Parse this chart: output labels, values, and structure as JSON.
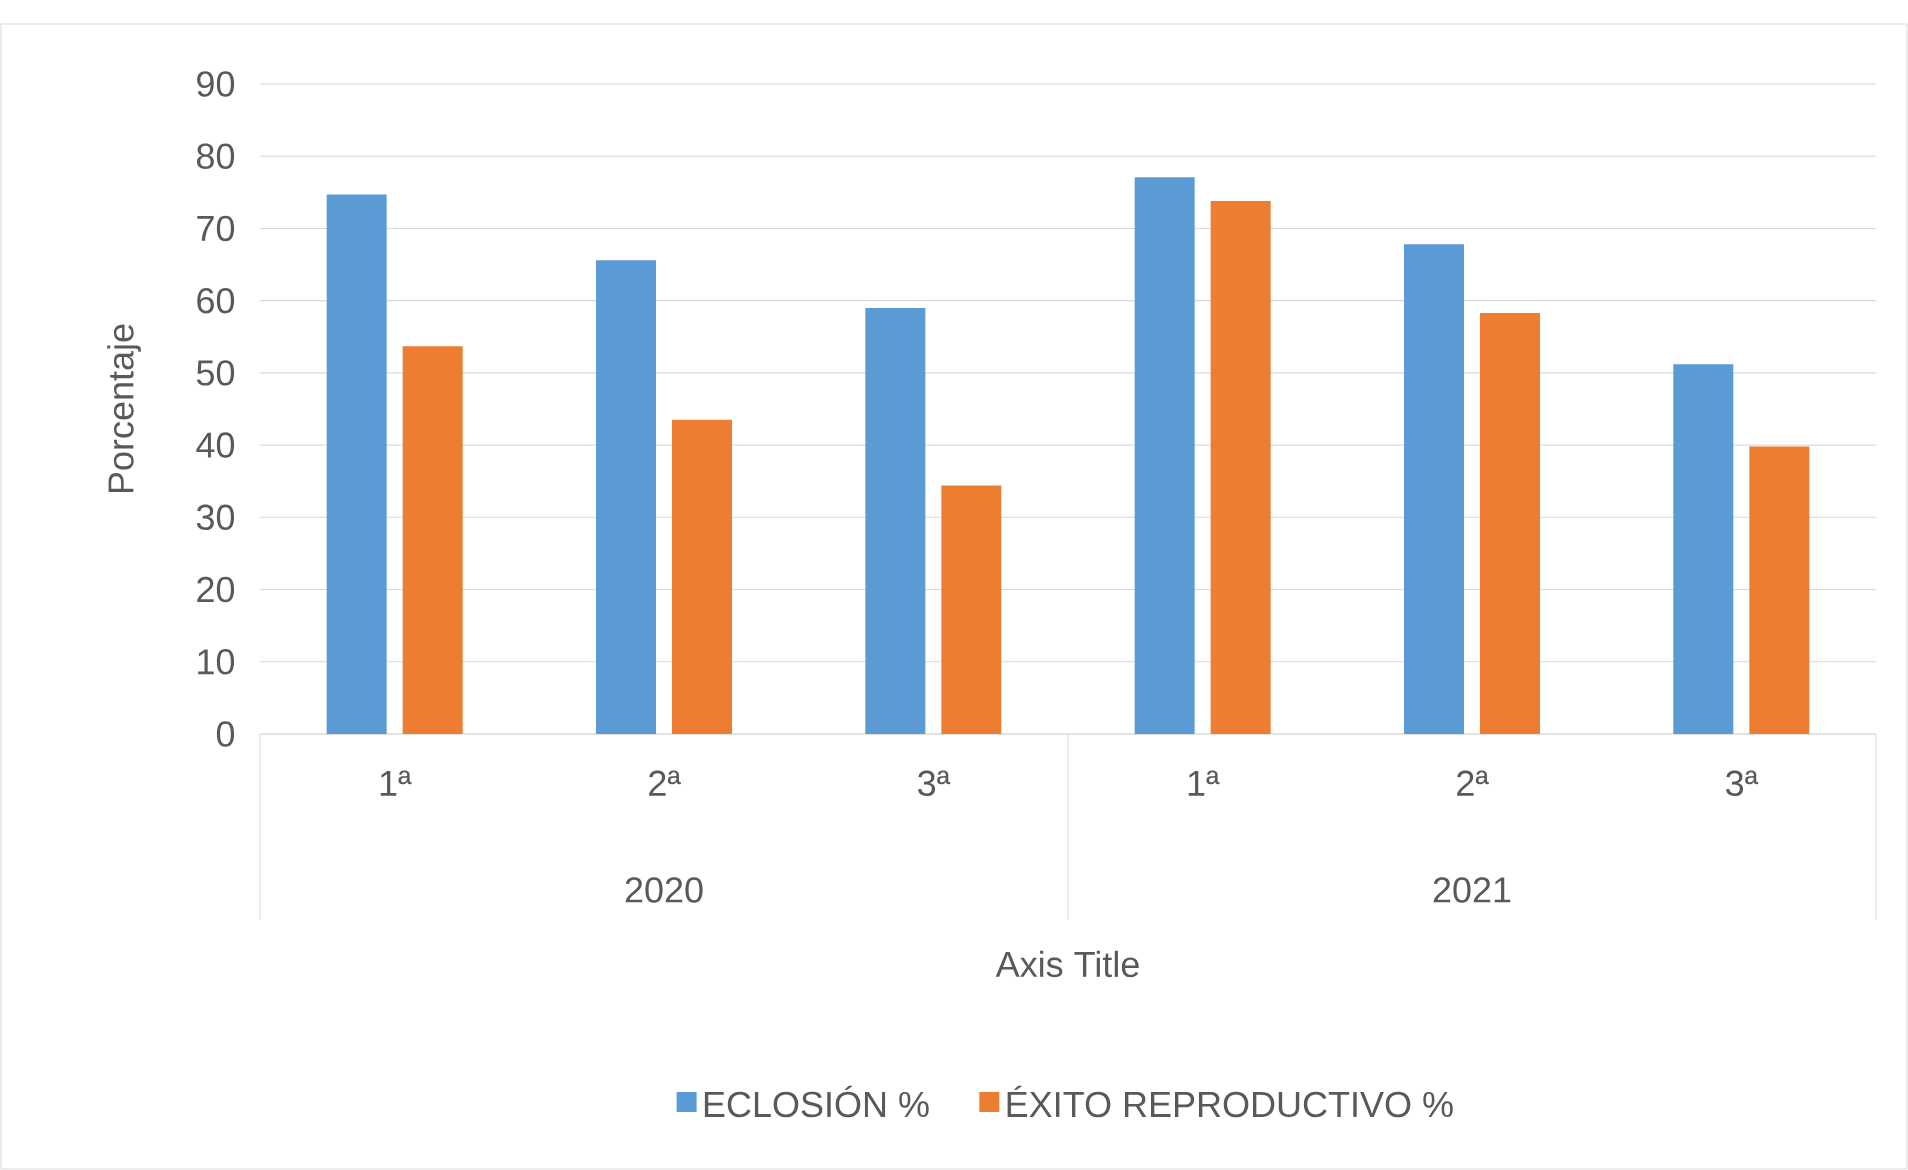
{
  "chart_data": {
    "type": "bar",
    "ylabel": "Porcentaje",
    "xlabel": "Axis Title",
    "categories": [
      "1ª",
      "2ª",
      "3ª",
      "1ª",
      "2ª",
      "3ª"
    ],
    "annotations": [
      "2020",
      "2021"
    ],
    "series": [
      {
        "name": "ECLOSIÓN %",
        "color": "#5b9bd5",
        "values": [
          74.7,
          65.6,
          59.0,
          77.1,
          67.8,
          51.2
        ]
      },
      {
        "name": "ÉXITO REPRODUCTIVO %",
        "color": "#ed7d31",
        "values": [
          53.7,
          43.5,
          34.4,
          73.8,
          58.3,
          39.8
        ]
      }
    ],
    "ylim": [
      0,
      90
    ],
    "yticks": [
      0,
      10,
      20,
      30,
      40,
      50,
      60,
      70,
      80,
      90
    ],
    "grid": "y",
    "legend": "bottom"
  }
}
